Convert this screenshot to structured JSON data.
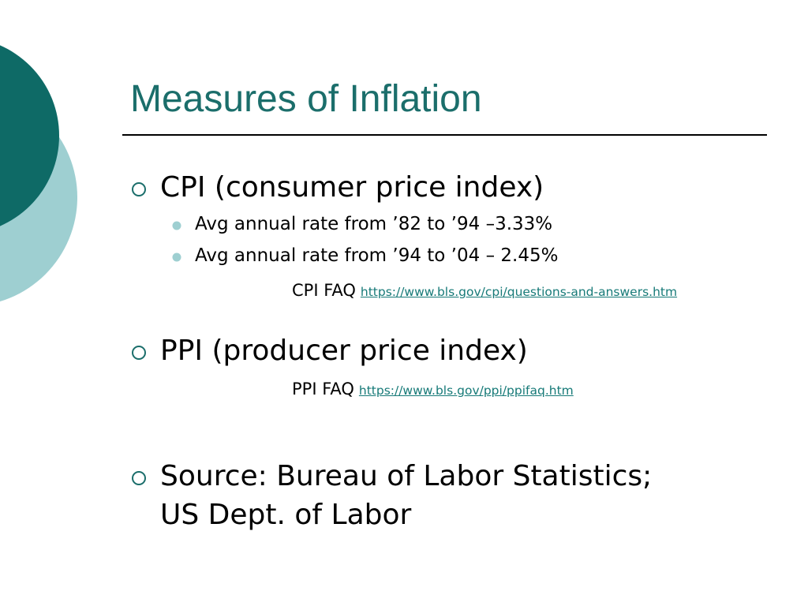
{
  "slide": {
    "title": "Measures of Inflation",
    "bullets": [
      {
        "text": "CPI (consumer price index)",
        "sub_bullets": [
          "Avg annual rate from ’82 to ’94 –3.33%",
          "Avg annual rate from ’94 to ’04 – 2.45%"
        ],
        "faq": {
          "label": "CPI FAQ",
          "link": "https://www.bls.gov/cpi/questions-and-answers.htm"
        }
      },
      {
        "text": "PPI (producer price index)",
        "faq": {
          "label": "PPI FAQ",
          "link": "https://www.bls.gov/ppi/ppifaq.htm"
        }
      },
      {
        "lines": [
          "Source: Bureau of Labor Statistics;",
          "US Dept. of Labor"
        ]
      }
    ]
  }
}
